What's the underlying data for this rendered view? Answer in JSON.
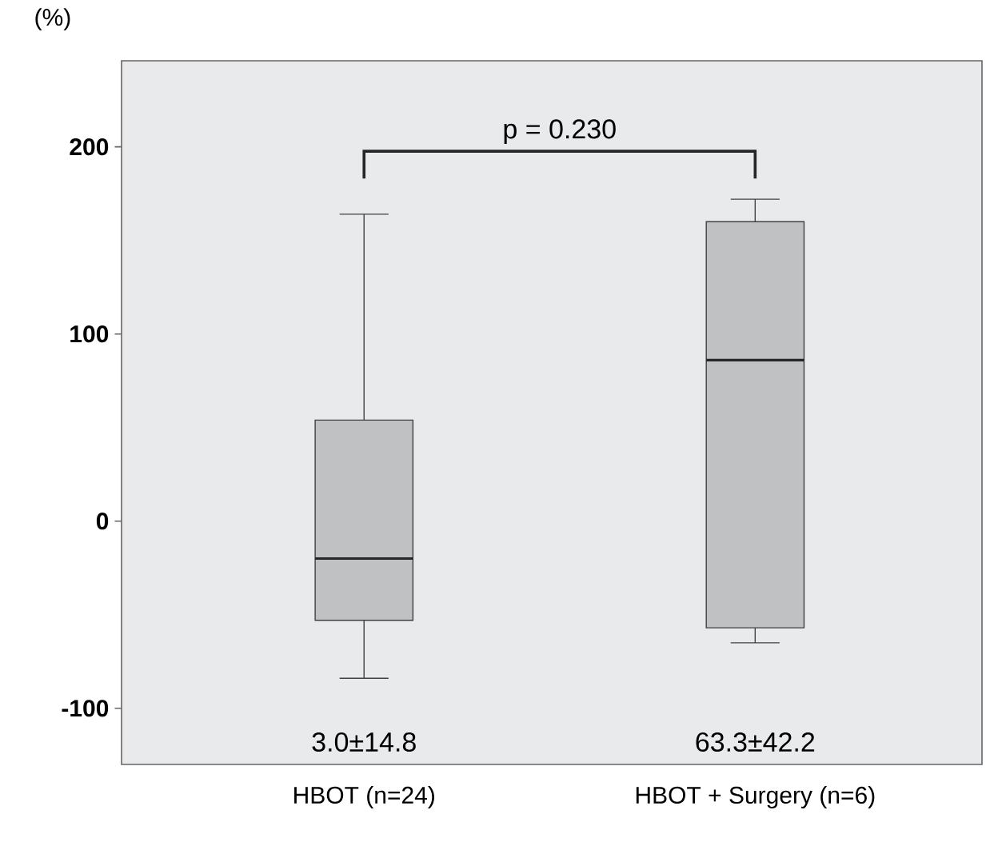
{
  "chart_data": {
    "type": "box",
    "ylabel": "(%)",
    "categories": [
      "HBOT (n=24)",
      "HBOT + Surgery (n=6)"
    ],
    "series": [
      {
        "color": "#c0c1c3",
        "boxes": [
          {
            "low": -84,
            "q1": -53,
            "median": -20,
            "q3": 54,
            "high": 164
          },
          {
            "low": -65,
            "q1": -57,
            "median": 86,
            "q3": 160,
            "high": 172
          }
        ]
      }
    ],
    "ylim": [
      -130,
      246
    ],
    "yticks": [
      -100,
      0,
      100,
      200
    ],
    "grid": false,
    "annotations": [
      "p = 0.230",
      "3.0±14.8",
      "63.3±42.2"
    ]
  }
}
